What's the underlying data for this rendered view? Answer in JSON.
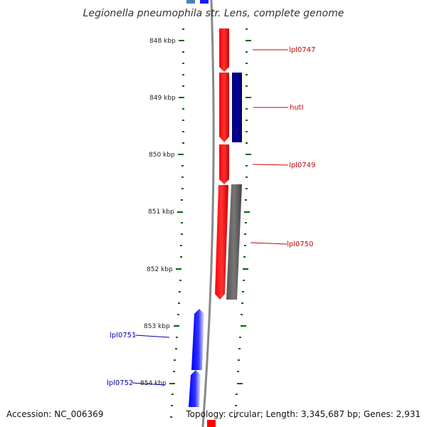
{
  "title": "Legionella pneumophila str. Lens, complete genome",
  "footer": {
    "accession": "Accession: NC_006369",
    "topology": "Topology: circular; Length: 3,345,687 bp; Genes: 2,931"
  },
  "ticks": [
    "848 kbp",
    "849 kbp",
    "850 kbp",
    "851 kbp",
    "852 kbp",
    "853 kbp",
    "854 kbp"
  ],
  "genes": [
    {
      "label": "lpl0747",
      "color": "#cc0000"
    },
    {
      "label": "hutI",
      "color": "#cc0000"
    },
    {
      "label": "lpl0749",
      "color": "#cc0000"
    },
    {
      "label": "lpl0750",
      "color": "#cc0000"
    },
    {
      "label": "lpl0751",
      "color": "#0000aa"
    },
    {
      "label": "lpl0752",
      "color": "#0000aa"
    }
  ],
  "colors": {
    "forward_gene": "#ff0000",
    "reverse_gene": "#0000ff",
    "hutI_partner": "#000080",
    "lpl0750_partner": "#666666",
    "backbone": "#888888",
    "tick": "#006600"
  }
}
